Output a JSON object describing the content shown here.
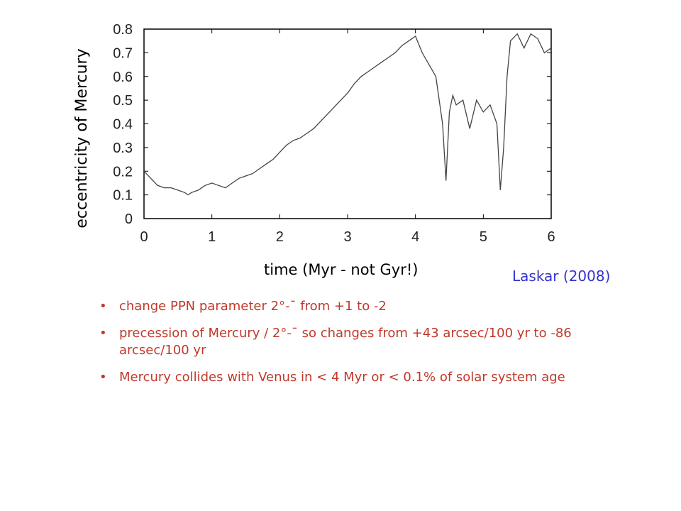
{
  "chart_data": {
    "type": "line",
    "title": "",
    "xlabel": "time (Myr - not Gyr!)",
    "ylabel": "eccentricity of Mercury",
    "xlim": [
      0,
      6
    ],
    "ylim": [
      0,
      0.8
    ],
    "x_ticks": [
      "0",
      "1",
      "2",
      "3",
      "4",
      "5",
      "6"
    ],
    "y_ticks": [
      "0",
      "0.1",
      "0.2",
      "0.3",
      "0.4",
      "0.5",
      "0.6",
      "0.7",
      "0.8"
    ],
    "grid": false,
    "series": [
      {
        "name": "",
        "x": [
          0,
          0.1,
          0.2,
          0.3,
          0.4,
          0.5,
          0.6,
          0.65,
          0.7,
          0.8,
          0.9,
          1.0,
          1.1,
          1.2,
          1.3,
          1.4,
          1.5,
          1.6,
          1.7,
          1.8,
          1.9,
          2.0,
          2.1,
          2.2,
          2.3,
          2.4,
          2.5,
          2.6,
          2.7,
          2.8,
          2.9,
          3.0,
          3.1,
          3.2,
          3.3,
          3.4,
          3.5,
          3.6,
          3.7,
          3.8,
          3.9,
          4.0,
          4.1,
          4.2,
          4.3,
          4.4,
          4.45,
          4.5,
          4.55,
          4.6,
          4.7,
          4.8,
          4.9,
          5.0,
          5.1,
          5.2,
          5.25,
          5.3,
          5.35,
          5.4,
          5.5,
          5.6,
          5.7,
          5.8,
          5.9,
          6.0
        ],
        "y": [
          0.2,
          0.17,
          0.14,
          0.13,
          0.13,
          0.12,
          0.11,
          0.1,
          0.11,
          0.12,
          0.14,
          0.15,
          0.14,
          0.13,
          0.15,
          0.17,
          0.18,
          0.19,
          0.21,
          0.23,
          0.25,
          0.28,
          0.31,
          0.33,
          0.34,
          0.36,
          0.38,
          0.41,
          0.44,
          0.47,
          0.5,
          0.53,
          0.57,
          0.6,
          0.62,
          0.64,
          0.66,
          0.68,
          0.7,
          0.73,
          0.75,
          0.77,
          0.7,
          0.65,
          0.6,
          0.4,
          0.16,
          0.45,
          0.52,
          0.48,
          0.5,
          0.38,
          0.5,
          0.45,
          0.48,
          0.4,
          0.12,
          0.3,
          0.6,
          0.75,
          0.78,
          0.72,
          0.78,
          0.76,
          0.7,
          0.72
        ]
      }
    ]
  },
  "caption": {
    "xlabel": "time (Myr - not Gyr!)",
    "credit": "Laskar (2008)"
  },
  "bullets": [
    "change PPN parameter 2°-¯ from +1 to -2",
    "precession of Mercury / 2°-¯ so changes from +43 arcsec/100 yr to -86 arcsec/100 yr",
    "Mercury collides with Venus in < 4 Myr or < 0.1% of solar system age"
  ],
  "bullet_marker": "•",
  "colors": {
    "text_red": "#c0392b",
    "credit_blue": "#3333cc",
    "line": "#444444"
  }
}
